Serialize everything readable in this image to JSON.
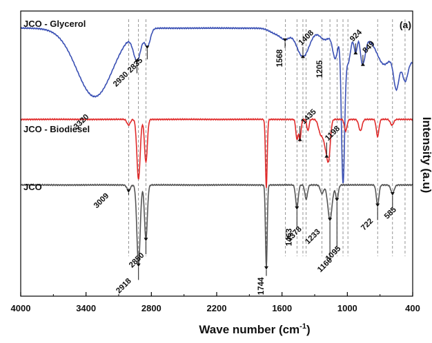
{
  "chart_data": {
    "type": "line",
    "panel_label": "(a)",
    "xlabel": "Wave number (cm",
    "xlabel_sup": "-1",
    "xlabel_tail": ")",
    "ylabel": "Intensity (a.u)",
    "xlim": [
      4000,
      400
    ],
    "x_ticks": [
      "4000",
      "3400",
      "2800",
      "2200",
      "1600",
      "1000",
      "400"
    ],
    "x_tick_values": [
      4000,
      3400,
      2800,
      2200,
      1600,
      1000,
      400
    ],
    "yaxis_ticks": false,
    "grid": false,
    "series": [
      {
        "name": "JCO - Glycerol",
        "color": "#3a50b4",
        "baseline": 0.94,
        "peaks": [
          {
            "x": 3320,
            "depth": 0.24,
            "width": 165
          },
          {
            "x": 2930,
            "depth": 0.1,
            "width": 35
          },
          {
            "x": 2835,
            "depth": 0.06,
            "width": 25
          },
          {
            "x": 1650,
            "depth": 0.02,
            "width": 60
          },
          {
            "x": 1568,
            "depth": 0.03,
            "width": 40
          },
          {
            "x": 1408,
            "depth": 0.1,
            "width": 60
          },
          {
            "x": 1205,
            "depth": 0.04,
            "width": 50
          },
          {
            "x": 1110,
            "depth": 0.1,
            "width": 25
          },
          {
            "x": 1040,
            "depth": 0.52,
            "width": 15
          },
          {
            "x": 995,
            "depth": 0.12,
            "width": 25
          },
          {
            "x": 924,
            "depth": 0.07,
            "width": 15
          },
          {
            "x": 870,
            "depth": 0.05,
            "width": 15
          },
          {
            "x": 849,
            "depth": 0.07,
            "width": 20
          },
          {
            "x": 670,
            "depth": 0.06,
            "width": 55
          },
          {
            "x": 550,
            "depth": 0.12,
            "width": 25
          },
          {
            "x": 470,
            "depth": 0.08,
            "width": 25
          }
        ],
        "tilt": [
          {
            "from": 1000,
            "to": 400,
            "drop": 0.12
          }
        ]
      },
      {
        "name": "JCO - Biodiesel",
        "color": "#e02a2a",
        "baseline": 0.62,
        "peaks": [
          {
            "x": 3009,
            "depth": 0.02,
            "width": 15
          },
          {
            "x": 2918,
            "depth": 0.21,
            "width": 15
          },
          {
            "x": 2850,
            "depth": 0.15,
            "width": 13
          },
          {
            "x": 1744,
            "depth": 0.24,
            "width": 8
          },
          {
            "x": 1463,
            "depth": 0.07,
            "width": 10
          },
          {
            "x": 1435,
            "depth": 0.07,
            "width": 10
          },
          {
            "x": 1362,
            "depth": 0.04,
            "width": 10
          },
          {
            "x": 1245,
            "depth": 0.05,
            "width": 20
          },
          {
            "x": 1198,
            "depth": 0.09,
            "width": 20
          },
          {
            "x": 1170,
            "depth": 0.11,
            "width": 15
          },
          {
            "x": 1015,
            "depth": 0.04,
            "width": 12
          },
          {
            "x": 880,
            "depth": 0.04,
            "width": 15
          },
          {
            "x": 722,
            "depth": 0.06,
            "width": 12
          },
          {
            "x": 590,
            "depth": 0.02,
            "width": 15
          }
        ],
        "tilt": []
      },
      {
        "name": "JCO",
        "color": "#555555",
        "baseline": 0.39,
        "peaks": [
          {
            "x": 3009,
            "depth": 0.02,
            "width": 15
          },
          {
            "x": 2918,
            "depth": 0.28,
            "width": 15
          },
          {
            "x": 2850,
            "depth": 0.19,
            "width": 13
          },
          {
            "x": 1744,
            "depth": 0.29,
            "width": 8
          },
          {
            "x": 1463,
            "depth": 0.08,
            "width": 12
          },
          {
            "x": 1378,
            "depth": 0.05,
            "width": 12
          },
          {
            "x": 1233,
            "depth": 0.03,
            "width": 15
          },
          {
            "x": 1160,
            "depth": 0.12,
            "width": 20
          },
          {
            "x": 1095,
            "depth": 0.05,
            "width": 12
          },
          {
            "x": 722,
            "depth": 0.07,
            "width": 12
          },
          {
            "x": 585,
            "depth": 0.03,
            "width": 15
          }
        ],
        "tilt": []
      }
    ],
    "series_labels": [
      {
        "text": "JCO - Glycerol",
        "series": 0
      },
      {
        "text": "JCO - Biodiesel",
        "series": 1
      },
      {
        "text": "JCO",
        "series": 2
      }
    ],
    "dashed_reference_lines": [
      3009,
      2918,
      2850,
      1744,
      1568,
      1463,
      1408,
      1378,
      1233,
      1160,
      1095,
      1040,
      995,
      722,
      585,
      470
    ],
    "annotations": [
      {
        "text": "3320",
        "series": 0
      },
      {
        "text": "2930",
        "series": 0
      },
      {
        "text": "2835",
        "series": 0
      },
      {
        "text": "1568",
        "series": 0
      },
      {
        "text": "1408",
        "series": 0
      },
      {
        "text": "1205",
        "series": 0
      },
      {
        "text": "924",
        "series": 0
      },
      {
        "text": "849",
        "series": 0
      },
      {
        "text": "1435",
        "series": 1
      },
      {
        "text": "1198",
        "series": 1
      },
      {
        "text": "3009",
        "series": 2
      },
      {
        "text": "2918",
        "series": 2
      },
      {
        "text": "2850",
        "series": 2
      },
      {
        "text": "1744",
        "series": 2
      },
      {
        "text": "1463",
        "series": 2
      },
      {
        "text": "1378",
        "series": 2
      },
      {
        "text": "1233",
        "series": 2
      },
      {
        "text": "1160",
        "series": 2
      },
      {
        "text": "1095",
        "series": 2
      },
      {
        "text": "722",
        "series": 2
      },
      {
        "text": "585",
        "series": 2
      }
    ]
  }
}
